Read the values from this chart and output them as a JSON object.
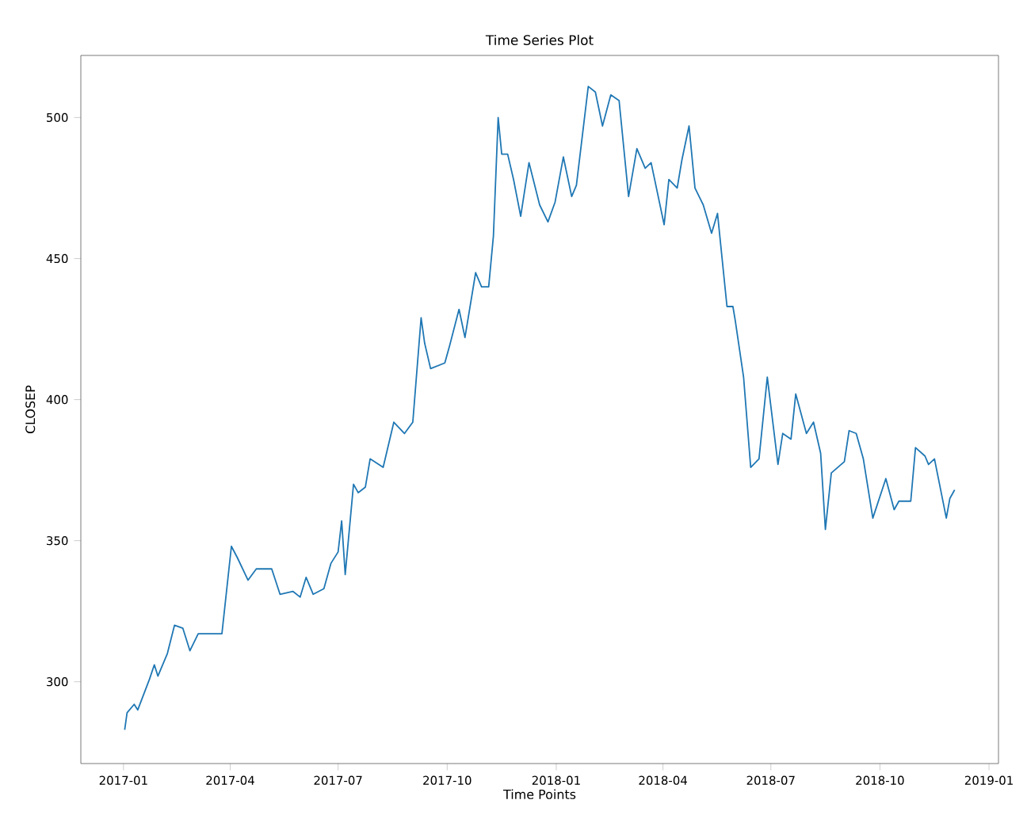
{
  "chart_data": {
    "type": "line",
    "title": "Time Series Plot",
    "xlabel": "Time Points",
    "ylabel": "CLOSEP",
    "x": [
      "2017-01-02",
      "2017-01-04",
      "2017-01-10",
      "2017-01-13",
      "2017-01-23",
      "2017-01-27",
      "2017-01-30",
      "2017-02-07",
      "2017-02-13",
      "2017-02-20",
      "2017-02-26",
      "2017-03-05",
      "2017-03-25",
      "2017-04-02",
      "2017-04-07",
      "2017-04-16",
      "2017-04-23",
      "2017-05-06",
      "2017-05-13",
      "2017-05-24",
      "2017-05-30",
      "2017-06-04",
      "2017-06-10",
      "2017-06-19",
      "2017-06-25",
      "2017-07-01",
      "2017-07-04",
      "2017-07-07",
      "2017-07-14",
      "2017-07-18",
      "2017-07-24",
      "2017-07-28",
      "2017-08-08",
      "2017-08-17",
      "2017-08-26",
      "2017-09-02",
      "2017-09-09",
      "2017-09-12",
      "2017-09-17",
      "2017-09-29",
      "2017-10-03",
      "2017-10-11",
      "2017-10-16",
      "2017-10-25",
      "2017-10-30",
      "2017-11-05",
      "2017-11-09",
      "2017-11-13",
      "2017-11-16",
      "2017-11-21",
      "2017-11-26",
      "2017-12-02",
      "2017-12-09",
      "2017-12-18",
      "2017-12-25",
      "2017-12-31",
      "2018-01-07",
      "2018-01-14",
      "2018-01-18",
      "2018-01-28",
      "2018-02-03",
      "2018-02-09",
      "2018-02-16",
      "2018-02-23",
      "2018-03-03",
      "2018-03-10",
      "2018-03-17",
      "2018-03-22",
      "2018-04-02",
      "2018-04-06",
      "2018-04-13",
      "2018-04-17",
      "2018-04-23",
      "2018-04-28",
      "2018-05-05",
      "2018-05-12",
      "2018-05-17",
      "2018-05-25",
      "2018-05-30",
      "2018-06-01",
      "2018-06-08",
      "2018-06-14",
      "2018-06-21",
      "2018-06-28",
      "2018-07-07",
      "2018-07-11",
      "2018-07-18",
      "2018-07-22",
      "2018-07-31",
      "2018-08-06",
      "2018-08-12",
      "2018-08-16",
      "2018-08-21",
      "2018-09-01",
      "2018-09-05",
      "2018-09-11",
      "2018-09-17",
      "2018-09-25",
      "2018-10-06",
      "2018-10-13",
      "2018-10-17",
      "2018-10-27",
      "2018-10-31",
      "2018-11-08",
      "2018-11-11",
      "2018-11-16",
      "2018-11-26",
      "2018-11-29",
      "2018-12-03"
    ],
    "series": [
      {
        "color": "#1f77b4",
        "values": [
          283,
          289,
          292,
          290,
          301,
          306,
          302,
          310,
          320,
          319,
          311,
          317,
          317,
          348,
          344,
          336,
          340,
          340,
          331,
          332,
          330,
          337,
          331,
          333,
          342,
          346,
          357,
          338,
          370,
          367,
          369,
          379,
          376,
          392,
          388,
          392,
          429,
          420,
          411,
          413,
          419,
          432,
          422,
          445,
          440,
          440,
          458,
          500,
          487,
          487,
          478,
          465,
          484,
          469,
          463,
          470,
          486,
          472,
          476,
          511,
          509,
          497,
          508,
          506,
          472,
          489,
          482,
          484,
          462,
          478,
          475,
          485,
          497,
          475,
          469,
          459,
          466,
          433,
          433,
          428,
          408,
          376,
          379,
          408,
          377,
          388,
          386,
          402,
          388,
          392,
          381,
          354,
          374,
          378,
          389,
          388,
          379,
          358,
          372,
          361,
          364,
          364,
          383,
          380,
          377,
          379,
          358,
          365,
          368
        ]
      }
    ],
    "xlim": [
      "2016-11-26",
      "2019-01-09"
    ],
    "ylim": [
      271,
      522
    ],
    "xticks": [
      "2017-01",
      "2017-04",
      "2017-07",
      "2017-10",
      "2018-01",
      "2018-04",
      "2018-07",
      "2018-10",
      "2019-01"
    ],
    "yticks": [
      300,
      350,
      400,
      450,
      500
    ]
  }
}
